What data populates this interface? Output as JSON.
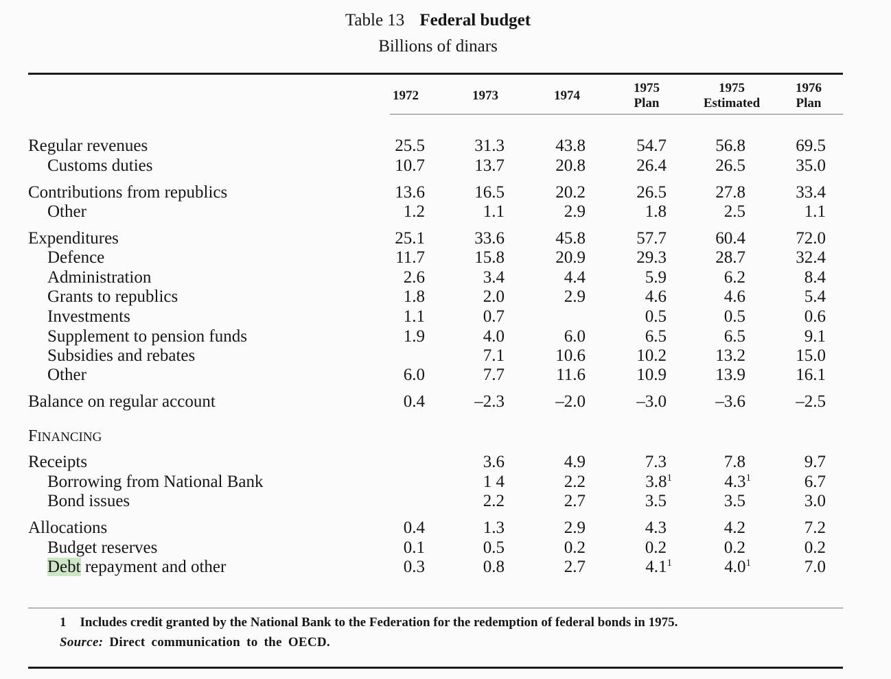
{
  "title": {
    "prefix": "Table 13",
    "main": "Federal budget"
  },
  "subtitle": "Billions of dinars",
  "columns": [
    {
      "line1": "1972",
      "line2": ""
    },
    {
      "line1": "1973",
      "line2": ""
    },
    {
      "line1": "1974",
      "line2": ""
    },
    {
      "line1": "1975",
      "line2": "Plan"
    },
    {
      "line1": "1975",
      "line2": "Estimated"
    },
    {
      "line1": "1976",
      "line2": "Plan"
    }
  ],
  "rows": [
    {
      "label": "Regular revenues",
      "values": [
        "25.5",
        "31.3",
        "43.8",
        "54.7",
        "56.8",
        "69.5"
      ]
    },
    {
      "label": "Customs duties",
      "values": [
        "10.7",
        "13.7",
        "20.8",
        "26.4",
        "26.5",
        "35.0"
      ]
    },
    {
      "label": "Contributions from republics",
      "values": [
        "13.6",
        "16.5",
        "20.2",
        "26.5",
        "27.8",
        "33.4"
      ]
    },
    {
      "label": "Other",
      "values": [
        "1.2",
        "1.1",
        "2.9",
        "1.8",
        "2.5",
        "1.1"
      ]
    },
    {
      "label": "Expenditures",
      "values": [
        "25.1",
        "33.6",
        "45.8",
        "57.7",
        "60.4",
        "72.0"
      ]
    },
    {
      "label": "Defence",
      "values": [
        "11.7",
        "15.8",
        "20.9",
        "29.3",
        "28.7",
        "32.4"
      ]
    },
    {
      "label": "Administration",
      "values": [
        "2.6",
        "3.4",
        "4.4",
        "5.9",
        "6.2",
        "8.4"
      ]
    },
    {
      "label": "Grants to republics",
      "values": [
        "1.8",
        "2.0",
        "2.9",
        "4.6",
        "4.6",
        "5.4"
      ]
    },
    {
      "label": "Investments",
      "values": [
        "1.1",
        "0.7",
        "",
        "0.5",
        "0.5",
        "0.6"
      ]
    },
    {
      "label": "Supplement to pension funds",
      "values": [
        "1.9",
        "4.0",
        "6.0",
        "6.5",
        "6.5",
        "9.1"
      ]
    },
    {
      "label": "Subsidies and rebates",
      "values": [
        "",
        "7.1",
        "10.6",
        "10.2",
        "13.2",
        "15.0"
      ]
    },
    {
      "label": "Other",
      "values": [
        "6.0",
        "7.7",
        "11.6",
        "10.9",
        "13.9",
        "16.1"
      ]
    },
    {
      "label": "Balance on regular account",
      "values": [
        "0.4",
        "–2.3",
        "–2.0",
        "–3.0",
        "–3.6",
        "–2.5"
      ]
    },
    {
      "label": "Receipts",
      "values": [
        "",
        "3.6",
        "4.9",
        "7.3",
        "7.8",
        "9.7"
      ]
    },
    {
      "label": "Borrowing from National Bank",
      "values": [
        "",
        "1 4",
        "2.2",
        "3.8",
        "4.3",
        "6.7"
      ]
    },
    {
      "label": "Bond issues",
      "values": [
        "",
        "2.2",
        "2.7",
        "3.5",
        "3.5",
        "3.0"
      ]
    },
    {
      "label": "Allocations",
      "values": [
        "0.4",
        "1.3",
        "2.9",
        "4.3",
        "4.2",
        "7.2"
      ]
    },
    {
      "label": "Budget reserves",
      "values": [
        "0.1",
        "0.5",
        "0.2",
        "0.2",
        "0.2",
        "0.2"
      ]
    },
    {
      "label_highlight": "Debt",
      "label_rest": " repayment and other",
      "values": [
        "0.3",
        "0.8",
        "2.7",
        "4.1",
        "4.0",
        "7.0"
      ]
    }
  ],
  "footnote_mark": "1",
  "financing": {
    "initial": "F",
    "rest": "INANCING"
  },
  "footnote": {
    "number": "1",
    "text": "Includes credit granted by the National Bank to the Federation for the redemption of federal bonds in 1975."
  },
  "source": {
    "label": "Source:",
    "text": "Direct communication to the OECD."
  }
}
